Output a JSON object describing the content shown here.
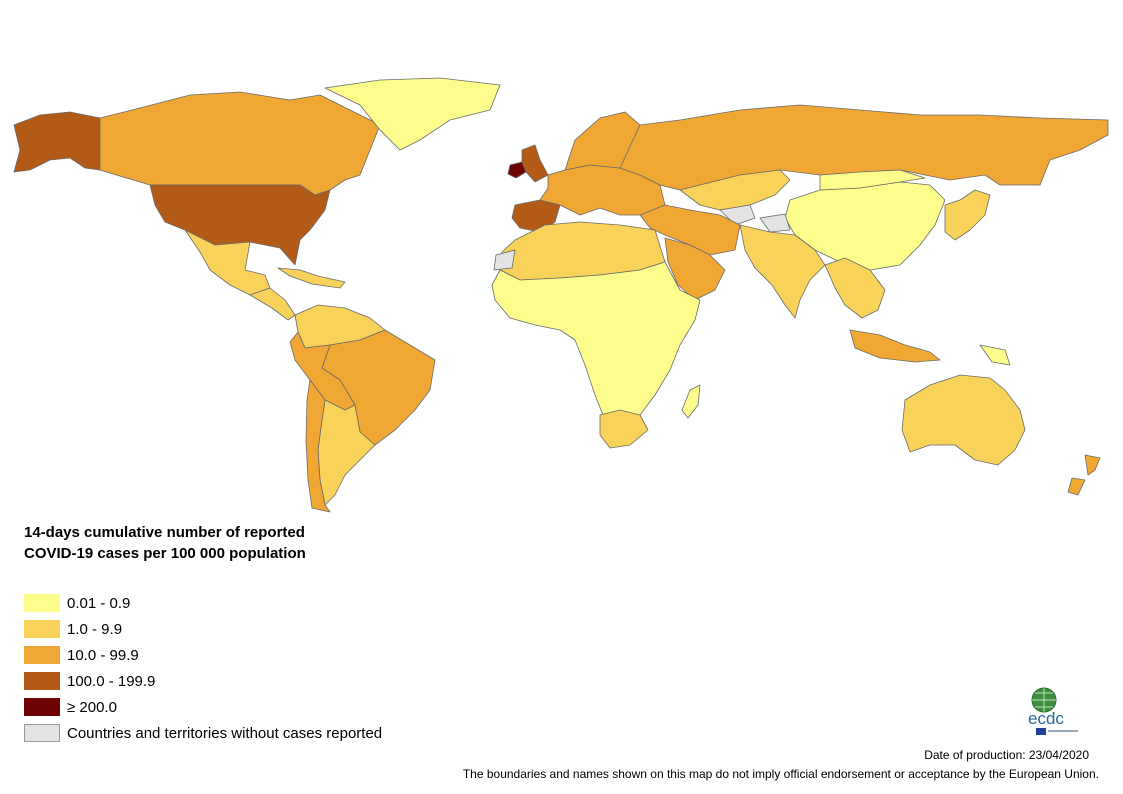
{
  "legend": {
    "title": "14-days cumulative number of reported COVID-19 cases per 100 000 population",
    "items": [
      {
        "label": "0.01 - 0.9",
        "color": "#fdfd8b"
      },
      {
        "label": "1.0 - 9.9",
        "color": "#f9d25a"
      },
      {
        "label": "10.0 - 99.9",
        "color": "#f0a733"
      },
      {
        "label": "100.0 - 199.9",
        "color": "#b45a17"
      },
      {
        "label": "≥ 200.0",
        "color": "#6e0202"
      },
      {
        "label": "Countries and territories without cases reported",
        "color": "#e3e3e3"
      }
    ]
  },
  "logo": {
    "text": "ecdc",
    "icon": "ecdc-globe-logo"
  },
  "footer": {
    "date": "Date of production: 23/04/2020",
    "disclaimer": "The boundaries and names shown on this map do not imply official endorsement or acceptance by the European Union."
  },
  "regions": [
    {
      "name": "alaska",
      "cls": 3
    },
    {
      "name": "canada",
      "cls": 2
    },
    {
      "name": "greenland",
      "cls": 0
    },
    {
      "name": "usa",
      "cls": 3
    },
    {
      "name": "mexico",
      "cls": 1
    },
    {
      "name": "central-america",
      "cls": 1
    },
    {
      "name": "caribbean",
      "cls": 1
    },
    {
      "name": "colombia-venezuela",
      "cls": 1
    },
    {
      "name": "brazil",
      "cls": 2
    },
    {
      "name": "andes",
      "cls": 2
    },
    {
      "name": "argentina",
      "cls": 1
    },
    {
      "name": "chile",
      "cls": 2
    },
    {
      "name": "ireland",
      "cls": 4
    },
    {
      "name": "uk",
      "cls": 3
    },
    {
      "name": "iberia",
      "cls": 3
    },
    {
      "name": "europe",
      "cls": 2
    },
    {
      "name": "scandinavia",
      "cls": 2
    },
    {
      "name": "russia",
      "cls": 2
    },
    {
      "name": "kazakhstan",
      "cls": 1
    },
    {
      "name": "china",
      "cls": 0
    },
    {
      "name": "mongolia",
      "cls": 0
    },
    {
      "name": "central-asia-no-cases",
      "cls": 5
    },
    {
      "name": "middle-east",
      "cls": 2
    },
    {
      "name": "arabia",
      "cls": 2
    },
    {
      "name": "india",
      "cls": 1
    },
    {
      "name": "southeast-asia",
      "cls": 1
    },
    {
      "name": "japan-korea",
      "cls": 1
    },
    {
      "name": "north-africa",
      "cls": 1
    },
    {
      "name": "west-sahara-no-cases",
      "cls": 5
    },
    {
      "name": "africa",
      "cls": 0
    },
    {
      "name": "south-africa",
      "cls": 1
    },
    {
      "name": "madagascar",
      "cls": 0
    },
    {
      "name": "indonesia",
      "cls": 2
    },
    {
      "name": "png",
      "cls": 0
    },
    {
      "name": "australia",
      "cls": 1
    },
    {
      "name": "new-zealand",
      "cls": 2
    }
  ]
}
